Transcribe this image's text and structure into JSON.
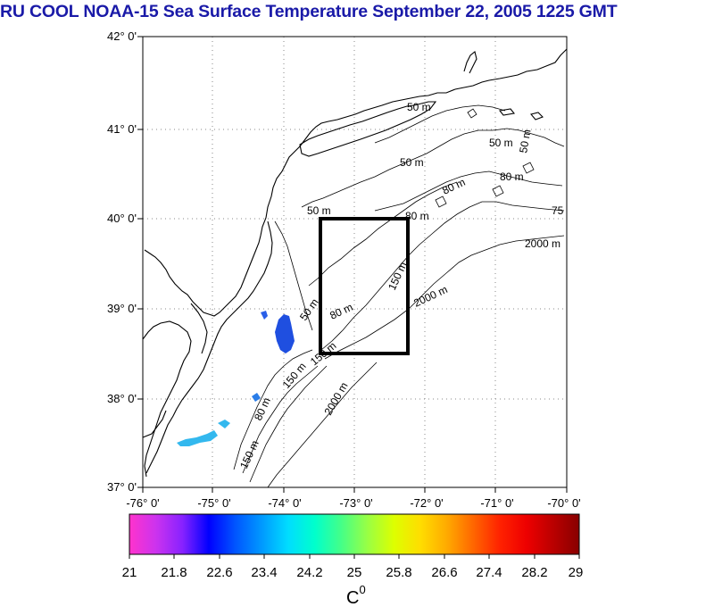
{
  "title": "RU COOL  NOAA-15 Sea Surface Temperature September 22, 2005 1225 GMT",
  "lat_labels": [
    "42° 0'",
    "41° 0'",
    "40° 0'",
    "39° 0'",
    "38° 0'",
    "37° 0'"
  ],
  "lon_labels": [
    "-76° 0'",
    "-75° 0'",
    "-74° 0'",
    "-73° 0'",
    "-72° 0'",
    "-71° 0'",
    "-70° 0'"
  ],
  "contour_labels": {
    "c50_a": "50 m",
    "c50_b": "50 m",
    "c50_c": "50 m",
    "c50_d": "50 m",
    "c50_e": "50 m",
    "c50_f": "50 m",
    "c80_a": "80 m",
    "c80_b": "80 m",
    "c80_c": "80 m",
    "c80_d": "80 m",
    "c80_e": "80 m",
    "c150_a": "150 m",
    "c150_b": "150 m",
    "c150_c": "150 m",
    "c150_d": "150 m",
    "c75": "75",
    "c2000_a": "2000 m",
    "c2000_b": "2000 m",
    "c2000_c": "2000 m"
  },
  "colorbar": {
    "ticks": [
      "21",
      "21.8",
      "22.6",
      "23.4",
      "24.2",
      "25",
      "25.8",
      "26.6",
      "27.4",
      "28.2",
      "29"
    ],
    "unit": "C",
    "unit_sup": "0",
    "colors": [
      "#ff33cc",
      "#cc33ee",
      "#8822ff",
      "#0000ff",
      "#0055ff",
      "#0099ff",
      "#00ddff",
      "#00ffcc",
      "#44ff88",
      "#99ff44",
      "#ddff00",
      "#ffdd00",
      "#ffaa00",
      "#ff6600",
      "#ff2200",
      "#ee0000",
      "#bb0000",
      "#880000"
    ]
  },
  "colors": {
    "title": "#1a1aa8",
    "sst_dark_blue": "#1f4fe0",
    "sst_mid_blue": "#2a7de8",
    "sst_cyan": "#33b8ee"
  }
}
